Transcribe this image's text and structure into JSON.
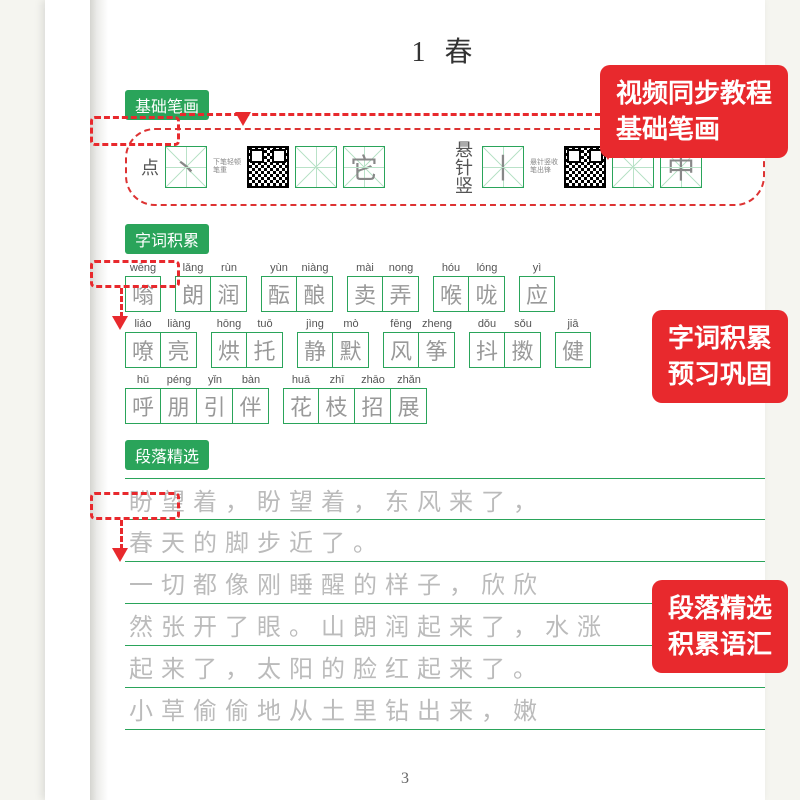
{
  "page_title": "1  春",
  "page_number": "3",
  "sections": {
    "strokes": {
      "tag": "基础笔画",
      "items": [
        {
          "label": "点",
          "tiny": "下笔轻顿笔重",
          "example": "它"
        },
        {
          "label": "悬针竖",
          "tiny": "悬针竖收笔出锋",
          "example": "中"
        }
      ]
    },
    "vocab": {
      "tag": "字词积累",
      "rows": [
        [
          {
            "pinyin": [
              "wēng"
            ],
            "chars": [
              "嗡"
            ]
          },
          {
            "pinyin": [
              "lǎng",
              "rùn"
            ],
            "chars": [
              "朗",
              "润"
            ]
          },
          {
            "pinyin": [
              "yùn",
              "niàng"
            ],
            "chars": [
              "酝",
              "酿"
            ]
          },
          {
            "pinyin": [
              "mài",
              "nong"
            ],
            "chars": [
              "卖",
              "弄"
            ]
          },
          {
            "pinyin": [
              "hóu",
              "lóng"
            ],
            "chars": [
              "喉",
              "咙"
            ]
          },
          {
            "pinyin": [
              "yì"
            ],
            "chars": [
              "应"
            ]
          }
        ],
        [
          {
            "pinyin": [
              "liáo",
              "liàng"
            ],
            "chars": [
              "嘹",
              "亮"
            ]
          },
          {
            "pinyin": [
              "hōng",
              "tuō"
            ],
            "chars": [
              "烘",
              "托"
            ]
          },
          {
            "pinyin": [
              "jìng",
              "mò"
            ],
            "chars": [
              "静",
              "默"
            ]
          },
          {
            "pinyin": [
              "fēng",
              "zheng"
            ],
            "chars": [
              "风",
              "筝"
            ]
          },
          {
            "pinyin": [
              "dǒu",
              "sǒu"
            ],
            "chars": [
              "抖",
              "擞"
            ]
          },
          {
            "pinyin": [
              "jiā"
            ],
            "chars": [
              "健"
            ]
          }
        ],
        [
          {
            "pinyin": [
              "hū",
              "péng",
              "yǐn",
              "bàn"
            ],
            "chars": [
              "呼",
              "朋",
              "引",
              "伴"
            ]
          },
          {
            "pinyin": [
              "huā",
              "zhī",
              "zhāo",
              "zhǎn"
            ],
            "chars": [
              "花",
              "枝",
              "招",
              "展"
            ]
          }
        ]
      ]
    },
    "paragraph": {
      "tag": "段落精选",
      "lines": [
        {
          "indent": true,
          "text": "盼望着，盼望着，东风来了，"
        },
        {
          "indent": false,
          "text": "春天的脚步近了。"
        },
        {
          "indent": true,
          "text": "一切都像刚睡醒的样子，欣欣"
        },
        {
          "indent": false,
          "text": "然张开了眼。山朗润起来了，水涨"
        },
        {
          "indent": false,
          "text": "起来了，太阳的脸红起来了。"
        },
        {
          "indent": true,
          "text": "小草偷偷地从土里钻出来，嫩"
        }
      ]
    }
  },
  "callouts": {
    "c1": {
      "l1": "视频同步教程",
      "l2": "基础笔画"
    },
    "c2": {
      "l1": "字词积累",
      "l2": "预习巩固"
    },
    "c3": {
      "l1": "段落精选",
      "l2": "积累语汇"
    }
  }
}
